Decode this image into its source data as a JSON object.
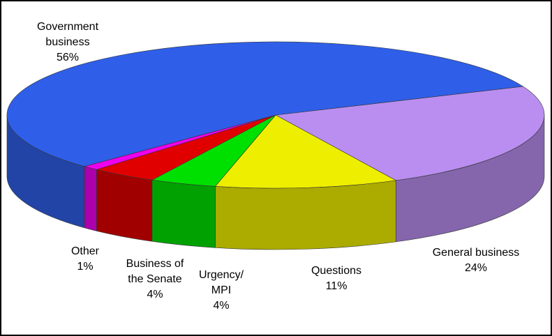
{
  "chart_data": {
    "type": "pie3d",
    "categories": [
      "Government business",
      "General business",
      "Questions",
      "Urgency/ MPI",
      "Business of the Senate",
      "Other"
    ],
    "values": [
      56,
      24,
      11,
      4,
      4,
      1
    ],
    "value_labels": [
      "56%",
      "24%",
      "11%",
      "4%",
      "4%",
      "1%"
    ],
    "colors": [
      "#2f5fe8",
      "#b98ef0",
      "#eeee00",
      "#00e000",
      "#e00000",
      "#ee00ee"
    ]
  }
}
